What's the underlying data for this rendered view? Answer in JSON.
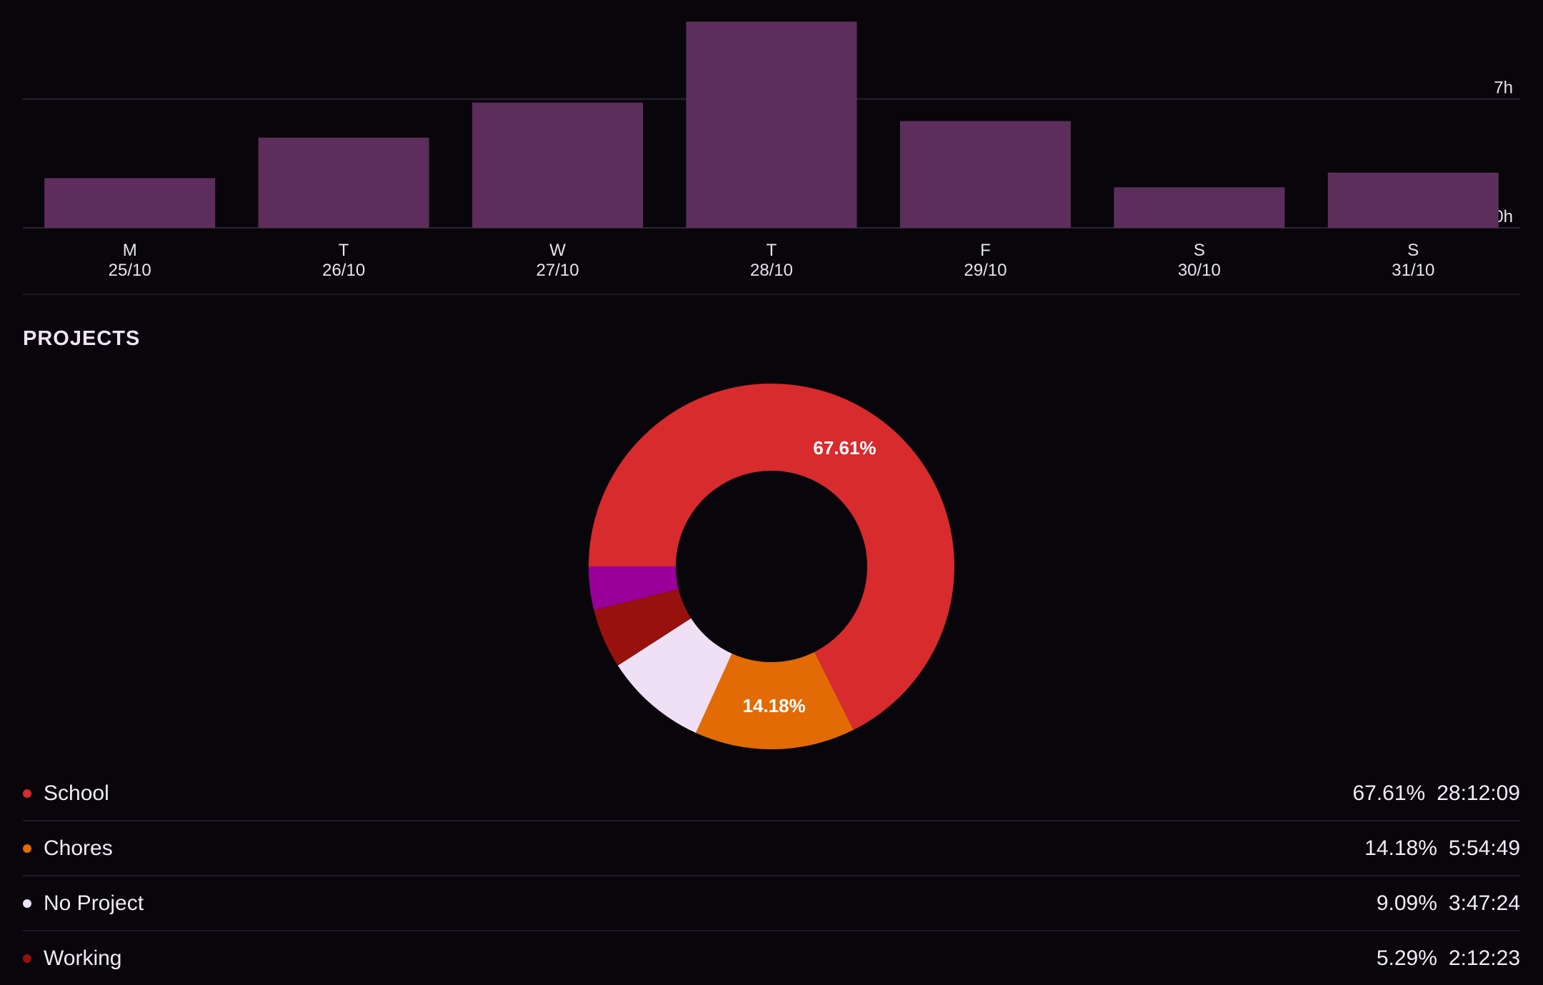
{
  "chart_data": [
    {
      "type": "bar",
      "categories": [
        "M",
        "T",
        "W",
        "T",
        "F",
        "S",
        "S"
      ],
      "dates": [
        "25/10",
        "26/10",
        "27/10",
        "28/10",
        "29/10",
        "30/10",
        "31/10"
      ],
      "values_hours": [
        2.7,
        4.9,
        6.8,
        11.2,
        5.8,
        2.2,
        3.0
      ],
      "ylim": [
        0,
        11.6
      ],
      "y_ticks": [
        {
          "value": 7,
          "label": "7h"
        },
        {
          "value": 0,
          "label": "0h"
        }
      ],
      "bar_color": "#5d2e5c"
    },
    {
      "type": "pie",
      "variant": "donut",
      "slices": [
        {
          "name": "School",
          "percent": 67.61,
          "label": "67.61%",
          "color": "#d72b2d"
        },
        {
          "name": "Chores",
          "percent": 14.18,
          "label": "14.18%",
          "color": "#e26b05"
        },
        {
          "name": "No Project",
          "percent": 9.09,
          "label": "",
          "color": "#f0e0f5"
        },
        {
          "name": "Working",
          "percent": 5.29,
          "label": "",
          "color": "#98110d"
        },
        {
          "name": "",
          "percent": 3.83,
          "label": "",
          "color": "#990099"
        }
      ]
    }
  ],
  "projects": {
    "title": "PROJECTS",
    "legend": [
      {
        "name": "School",
        "percent": "67.61%",
        "time": "28:12:09",
        "color": "#d72b2d"
      },
      {
        "name": "Chores",
        "percent": "14.18%",
        "time": "5:54:49",
        "color": "#e26b05"
      },
      {
        "name": "No Project",
        "percent": "9.09%",
        "time": "3:47:24",
        "color": "#f0e0f5"
      },
      {
        "name": "Working",
        "percent": "5.29%",
        "time": "2:12:23",
        "color": "#98110d"
      }
    ]
  }
}
